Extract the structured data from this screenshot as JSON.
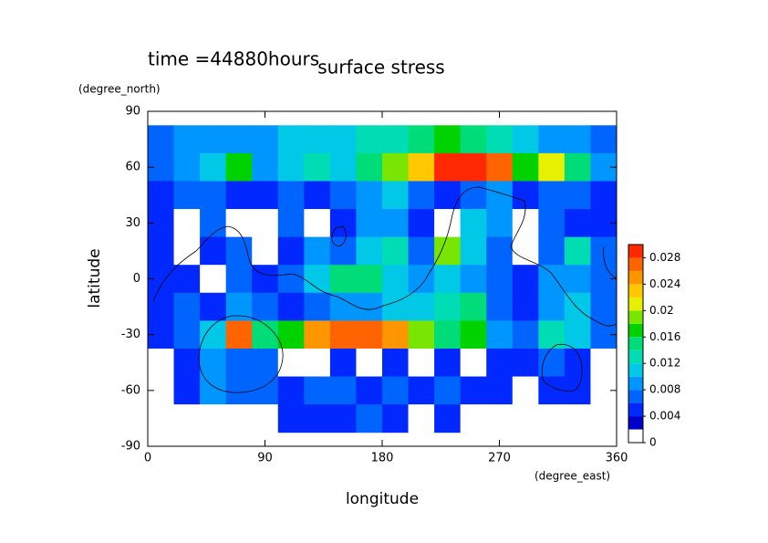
{
  "chart_data": {
    "type": "contour",
    "title": "surface stress",
    "subtitle": "time =44880hours",
    "x_label": "longitude",
    "x_unit": "(degree_east)",
    "y_label": "latitude",
    "y_unit": "(degree_north)",
    "xlim": [
      0,
      360
    ],
    "xticks": [
      0,
      90,
      180,
      270,
      360
    ],
    "ylim": [
      -90,
      90
    ],
    "yticks": [
      -90,
      -60,
      -30,
      0,
      30,
      60,
      90
    ],
    "x": [
      10,
      30,
      50,
      70,
      90,
      110,
      130,
      150,
      170,
      190,
      210,
      230,
      250,
      270,
      290,
      310,
      330,
      350
    ],
    "y": [
      75,
      60,
      45,
      30,
      15,
      0,
      -15,
      -30,
      -45,
      -60,
      -75
    ],
    "z": [
      [
        0.006,
        0.008,
        0.008,
        0.008,
        0.008,
        0.01,
        0.01,
        0.01,
        0.012,
        0.012,
        0.014,
        0.016,
        0.014,
        0.012,
        0.01,
        0.008,
        0.008,
        0.006
      ],
      [
        0.006,
        0.008,
        0.01,
        0.016,
        0.008,
        0.01,
        0.012,
        0.01,
        0.014,
        0.018,
        0.022,
        0.03,
        0.028,
        0.026,
        0.016,
        0.02,
        0.014,
        0.008
      ],
      [
        0.004,
        0.006,
        0.006,
        0.004,
        0.004,
        0.006,
        0.004,
        0.006,
        0.008,
        0.01,
        0.006,
        0.004,
        0.006,
        0.008,
        0.004,
        0.006,
        0.006,
        0.004
      ],
      [
        0.004,
        0.001,
        0.006,
        0.001,
        0.001,
        0.006,
        0.001,
        0.004,
        0.008,
        0.008,
        0.004,
        0.001,
        0.01,
        0.008,
        0.001,
        0.006,
        0.004,
        0.004
      ],
      [
        0.004,
        0.001,
        0.004,
        0.006,
        0.001,
        0.004,
        0.008,
        0.006,
        0.01,
        0.012,
        0.006,
        0.018,
        0.01,
        0.006,
        0.001,
        0.006,
        0.012,
        0.006
      ],
      [
        0.004,
        0.004,
        0.001,
        0.006,
        0.004,
        0.006,
        0.01,
        0.014,
        0.014,
        0.01,
        0.008,
        0.01,
        0.008,
        0.006,
        0.004,
        0.008,
        0.008,
        0.006
      ],
      [
        0.004,
        0.006,
        0.004,
        0.008,
        0.006,
        0.004,
        0.006,
        0.008,
        0.008,
        0.01,
        0.01,
        0.012,
        0.014,
        0.006,
        0.004,
        0.008,
        0.01,
        0.006
      ],
      [
        0.004,
        0.006,
        0.01,
        0.026,
        0.014,
        0.016,
        0.024,
        0.026,
        0.026,
        0.024,
        0.018,
        0.014,
        0.016,
        0.008,
        0.006,
        0.012,
        0.01,
        0.006
      ],
      [
        0.001,
        0.004,
        0.008,
        0.006,
        0.006,
        0.001,
        0.001,
        0.004,
        0.001,
        0.004,
        0.001,
        0.004,
        0.001,
        0.004,
        0.004,
        0.006,
        0.004,
        0.001
      ],
      [
        0.001,
        0.004,
        0.008,
        0.006,
        0.006,
        0.004,
        0.006,
        0.006,
        0.004,
        0.006,
        0.004,
        0.006,
        0.004,
        0.004,
        0.001,
        0.004,
        0.004,
        0.001
      ],
      [
        0.001,
        0.001,
        0.001,
        0.001,
        0.001,
        0.004,
        0.004,
        0.004,
        0.006,
        0.004,
        0.001,
        0.004,
        0.001,
        0.001,
        0.001,
        0.001,
        0.001,
        0.001
      ]
    ],
    "levels": [
      0,
      0.002,
      0.004,
      0.006,
      0.008,
      0.01,
      0.012,
      0.014,
      0.016,
      0.018,
      0.02,
      0.022,
      0.024,
      0.026,
      0.028,
      0.03
    ],
    "colors": [
      "#ffffff",
      "#0000c8",
      "#0028ff",
      "#0064ff",
      "#0096ff",
      "#00c8e6",
      "#00dcb4",
      "#00dc78",
      "#00d200",
      "#78e600",
      "#e6f000",
      "#ffc800",
      "#ff9600",
      "#ff6400",
      "#ff2800"
    ],
    "cbar_ticks": [
      0,
      0.004,
      0.008,
      0.012,
      0.016,
      0.02,
      0.024,
      0.028
    ]
  }
}
